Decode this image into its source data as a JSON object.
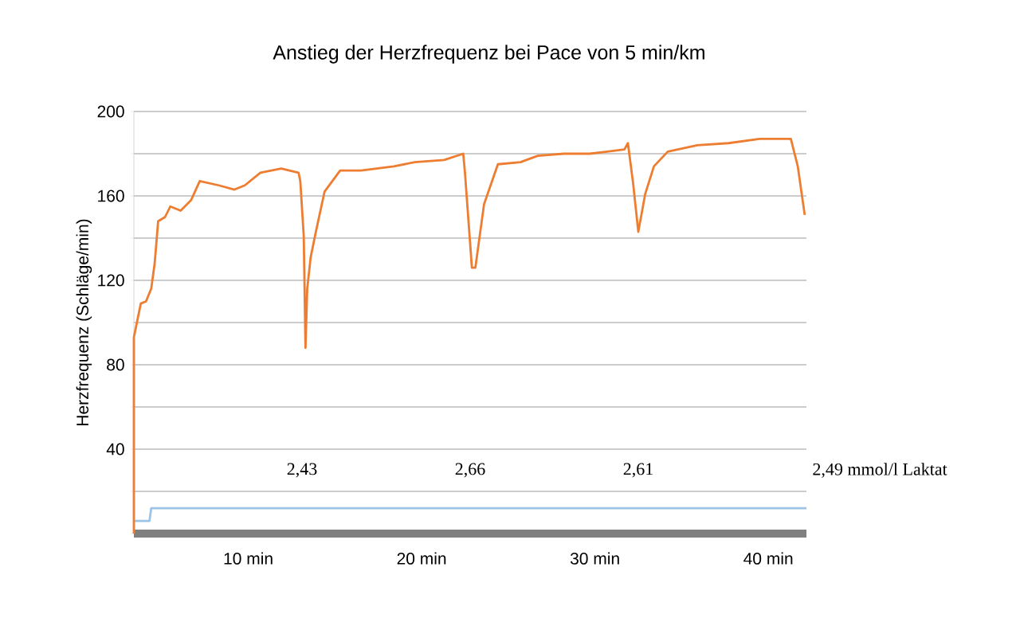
{
  "chart_data": {
    "type": "line",
    "title": "Anstieg der Herzfrequenz bei Pace von 5 min/km",
    "ylabel": "Herzfrequenz (Schläge/min)",
    "xlim": [
      3.4,
      42.2
    ],
    "ylim": [
      0,
      200
    ],
    "xticks": [
      {
        "value": 10,
        "label": "10 min"
      },
      {
        "value": 20,
        "label": "20 min"
      },
      {
        "value": 30,
        "label": "30 min"
      },
      {
        "value": 40,
        "label": "40 min"
      }
    ],
    "yticks": [
      {
        "value": 0,
        "label": null
      },
      {
        "value": 20,
        "label": null
      },
      40,
      {
        "value": 60,
        "label": null
      },
      80,
      {
        "value": 100,
        "label": null
      },
      120,
      {
        "value": 140,
        "label": null
      },
      160,
      {
        "value": 180,
        "label": null
      },
      200
    ],
    "grid": "y",
    "series": [
      {
        "color": "#ed7d31",
        "x": [
          3.4,
          3.4,
          3.8,
          4.1,
          4.4,
          4.6,
          4.8,
          5.2,
          5.5,
          6.1,
          6.7,
          7.2,
          8.3,
          9.2,
          9.8,
          10.7,
          11.9,
          12.9,
          13.0,
          13.2,
          13.3,
          13.4,
          13.6,
          13.9,
          14.4,
          15.3,
          16.5,
          18.4,
          19.6,
          21.3,
          22.4,
          22.5,
          22.9,
          23.1,
          23.6,
          24.4,
          25.7,
          26.7,
          28.2,
          29.7,
          31.7,
          31.9,
          32.2,
          32.5,
          32.9,
          33.4,
          34.2,
          35.9,
          37.7,
          39.5,
          41.3,
          41.7,
          42.1
        ],
        "values": [
          0,
          93,
          109,
          110,
          116,
          128,
          148,
          150,
          155,
          153,
          158,
          167,
          165,
          163,
          165,
          171,
          173,
          171,
          167,
          141,
          88,
          116,
          131,
          143,
          162,
          172,
          172,
          174,
          176,
          177,
          180,
          171,
          126,
          126,
          156,
          175,
          176,
          179,
          180,
          180,
          182,
          185,
          166,
          143,
          161,
          174,
          181,
          184,
          185,
          187,
          187,
          174,
          151
        ]
      },
      {
        "color": "#9dc3e6",
        "x": [
          3.4,
          4.3,
          4.4,
          42.2
        ],
        "values": [
          6,
          6,
          12,
          12
        ]
      }
    ],
    "annotations": [
      "2,43",
      "2,66",
      "2,61",
      "2,49  mmol/l Laktat"
    ]
  }
}
